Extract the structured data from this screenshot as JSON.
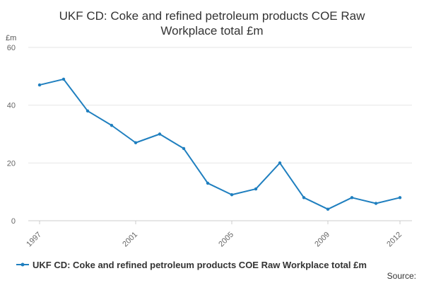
{
  "chart_data": {
    "type": "line",
    "title_lines": [
      "UKF CD: Coke and refined petroleum products COE Raw",
      "Workplace total £m"
    ],
    "y_unit": "£m",
    "ylim": [
      0,
      60
    ],
    "y_ticks": [
      0,
      20,
      40,
      60
    ],
    "x": [
      1997,
      1998,
      1999,
      2000,
      2001,
      2002,
      2003,
      2004,
      2005,
      2006,
      2007,
      2008,
      2009,
      2010,
      2011,
      2012
    ],
    "x_ticks": [
      1997,
      2001,
      2005,
      2009,
      2012
    ],
    "series": [
      {
        "name": "UKF CD: Coke and refined petroleum products COE Raw Workplace total £m",
        "values": [
          47,
          49,
          38,
          33,
          27,
          30,
          25,
          13,
          9,
          11,
          20,
          8,
          4,
          8,
          6,
          8
        ],
        "color": "#1f7fbf"
      }
    ],
    "grid": true,
    "legend_position": "bottom",
    "source_label": "Source:"
  }
}
